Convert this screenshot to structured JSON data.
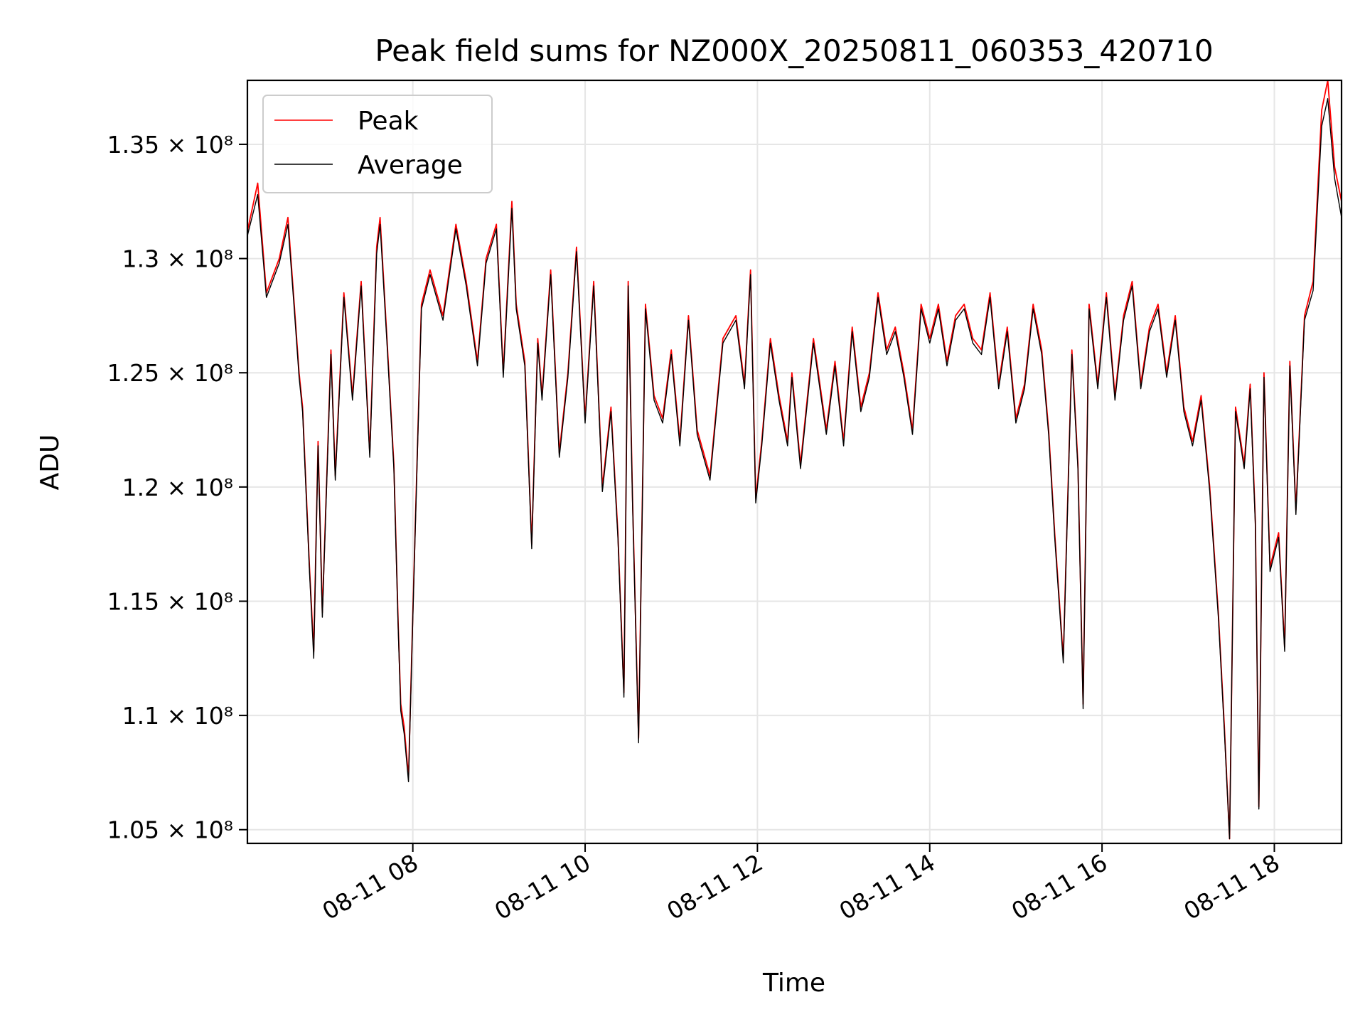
{
  "chart_data": {
    "type": "line",
    "title": "Peak field sums for NZ000X_20250811_060353_420710",
    "xlabel": "Time",
    "ylabel": "ADU",
    "x_unit": "hours",
    "xlim": [
      6.08,
      18.78
    ],
    "ylim": [
      104400000,
      137800000
    ],
    "xticks": [
      8,
      10,
      12,
      14,
      16,
      18
    ],
    "xtick_labels": [
      "08-11 08",
      "08-11 10",
      "08-11 12",
      "08-11 14",
      "08-11 16",
      "08-11 18"
    ],
    "yticks": [
      105000000,
      110000000,
      115000000,
      120000000,
      125000000,
      130000000,
      135000000
    ],
    "ytick_labels": [
      "1.05 × 10⁸",
      "1.1 × 10⁸",
      "1.15 × 10⁸",
      "1.2 × 10⁸",
      "1.25 × 10⁸",
      "1.3 × 10⁸",
      "1.35 × 10⁸"
    ],
    "grid": true,
    "legend_position": "top-left",
    "series": [
      {
        "name": "Peak",
        "color": "#ff0000",
        "x": [
          6.08,
          6.2,
          6.3,
          6.45,
          6.55,
          6.62,
          6.68,
          6.72,
          6.8,
          6.85,
          6.9,
          6.95,
          7.05,
          7.1,
          7.2,
          7.3,
          7.4,
          7.5,
          7.58,
          7.62,
          7.7,
          7.78,
          7.83,
          7.86,
          7.9,
          7.95,
          8.0,
          8.1,
          8.2,
          8.35,
          8.5,
          8.62,
          8.75,
          8.85,
          8.97,
          9.05,
          9.15,
          9.2,
          9.3,
          9.38,
          9.45,
          9.5,
          9.6,
          9.7,
          9.8,
          9.9,
          10.0,
          10.1,
          10.2,
          10.3,
          10.38,
          10.45,
          10.5,
          10.55,
          10.62,
          10.7,
          10.8,
          10.9,
          11.0,
          11.1,
          11.2,
          11.3,
          11.45,
          11.6,
          11.75,
          11.85,
          11.92,
          11.98,
          12.05,
          12.15,
          12.25,
          12.35,
          12.4,
          12.5,
          12.65,
          12.8,
          12.9,
          13.0,
          13.1,
          13.2,
          13.3,
          13.4,
          13.5,
          13.6,
          13.7,
          13.8,
          13.9,
          14.0,
          14.1,
          14.2,
          14.3,
          14.4,
          14.5,
          14.6,
          14.7,
          14.8,
          14.9,
          15.0,
          15.1,
          15.2,
          15.3,
          15.38,
          15.45,
          15.55,
          15.65,
          15.72,
          15.78,
          15.85,
          15.95,
          16.05,
          16.15,
          16.25,
          16.35,
          16.45,
          16.55,
          16.65,
          16.75,
          16.85,
          16.95,
          17.05,
          17.15,
          17.25,
          17.35,
          17.42,
          17.48,
          17.55,
          17.65,
          17.72,
          17.78,
          17.82,
          17.88,
          17.95,
          18.05,
          18.12,
          18.18,
          18.25,
          18.35,
          18.45,
          18.55,
          18.62,
          18.7,
          18.78
        ],
        "values": [
          131.2,
          133.3,
          128.5,
          130.0,
          131.8,
          128.2,
          125.0,
          123.5,
          116.5,
          112.8,
          122.0,
          114.5,
          126.0,
          120.5,
          128.5,
          124.0,
          129.0,
          121.5,
          130.5,
          131.8,
          126.5,
          121.0,
          114.0,
          110.5,
          109.5,
          107.3,
          114.5,
          128.0,
          129.5,
          127.5,
          131.5,
          129.0,
          125.5,
          130.0,
          131.5,
          125.0,
          132.5,
          128.0,
          125.5,
          117.5,
          126.5,
          124.0,
          129.5,
          121.5,
          125.0,
          130.5,
          123.0,
          129.0,
          120.0,
          123.5,
          118.0,
          111.0,
          129.0,
          119.5,
          109.0,
          128.0,
          124.0,
          123.0,
          126.0,
          122.0,
          127.5,
          122.5,
          120.5,
          126.5,
          127.5,
          124.5,
          129.5,
          119.5,
          122.0,
          126.5,
          124.0,
          122.0,
          125.0,
          121.0,
          126.5,
          122.5,
          125.5,
          122.0,
          127.0,
          123.5,
          125.0,
          128.5,
          126.0,
          127.0,
          125.0,
          122.5,
          128.0,
          126.5,
          128.0,
          125.5,
          127.5,
          128.0,
          126.5,
          126.0,
          128.5,
          124.5,
          127.0,
          123.0,
          124.5,
          128.0,
          126.0,
          122.5,
          118.0,
          112.5,
          126.0,
          121.0,
          110.5,
          128.0,
          124.5,
          128.5,
          124.0,
          127.5,
          129.0,
          124.5,
          127.0,
          128.0,
          125.0,
          127.5,
          123.5,
          122.0,
          124.0,
          120.0,
          114.5,
          109.5,
          104.6,
          123.5,
          121.0,
          124.5,
          118.5,
          106.0,
          125.0,
          116.5,
          118.0,
          113.0,
          125.5,
          119.0,
          127.5,
          129.0,
          136.5,
          137.8,
          134.0,
          132.5
        ]
      },
      {
        "name": "Average",
        "color": "#000000",
        "x": [
          6.08,
          6.2,
          6.3,
          6.45,
          6.55,
          6.62,
          6.68,
          6.72,
          6.8,
          6.85,
          6.9,
          6.95,
          7.05,
          7.1,
          7.2,
          7.3,
          7.4,
          7.5,
          7.58,
          7.62,
          7.7,
          7.78,
          7.83,
          7.86,
          7.9,
          7.95,
          8.0,
          8.1,
          8.2,
          8.35,
          8.5,
          8.62,
          8.75,
          8.85,
          8.97,
          9.05,
          9.15,
          9.2,
          9.3,
          9.38,
          9.45,
          9.5,
          9.6,
          9.7,
          9.8,
          9.9,
          10.0,
          10.1,
          10.2,
          10.3,
          10.38,
          10.45,
          10.5,
          10.55,
          10.62,
          10.7,
          10.8,
          10.9,
          11.0,
          11.1,
          11.2,
          11.3,
          11.45,
          11.6,
          11.75,
          11.85,
          11.92,
          11.98,
          12.05,
          12.15,
          12.25,
          12.35,
          12.4,
          12.5,
          12.65,
          12.8,
          12.9,
          13.0,
          13.1,
          13.2,
          13.3,
          13.4,
          13.5,
          13.6,
          13.7,
          13.8,
          13.9,
          14.0,
          14.1,
          14.2,
          14.3,
          14.4,
          14.5,
          14.6,
          14.7,
          14.8,
          14.9,
          15.0,
          15.1,
          15.2,
          15.3,
          15.38,
          15.45,
          15.55,
          15.65,
          15.72,
          15.78,
          15.85,
          15.95,
          16.05,
          16.15,
          16.25,
          16.35,
          16.45,
          16.55,
          16.65,
          16.75,
          16.85,
          16.95,
          17.05,
          17.15,
          17.25,
          17.35,
          17.42,
          17.48,
          17.55,
          17.65,
          17.72,
          17.78,
          17.82,
          17.88,
          17.95,
          18.05,
          18.12,
          18.18,
          18.25,
          18.35,
          18.45,
          18.55,
          18.62,
          18.7,
          18.78
        ],
        "values": [
          131.0,
          132.8,
          128.3,
          129.8,
          131.5,
          128.0,
          124.8,
          123.3,
          116.3,
          112.5,
          121.8,
          114.3,
          125.8,
          120.3,
          128.3,
          123.8,
          128.8,
          121.3,
          130.2,
          131.5,
          126.3,
          120.8,
          113.8,
          110.2,
          109.2,
          107.1,
          114.3,
          127.8,
          129.3,
          127.3,
          131.3,
          128.8,
          125.3,
          129.8,
          131.3,
          124.8,
          132.2,
          127.8,
          125.3,
          117.3,
          126.3,
          123.8,
          129.3,
          121.3,
          124.8,
          130.3,
          122.8,
          128.8,
          119.8,
          123.3,
          117.8,
          110.8,
          128.8,
          119.3,
          108.8,
          127.8,
          123.8,
          122.8,
          125.8,
          121.8,
          127.3,
          122.3,
          120.3,
          126.3,
          127.3,
          124.3,
          129.3,
          119.3,
          121.8,
          126.3,
          123.8,
          121.8,
          124.8,
          120.8,
          126.3,
          122.3,
          125.3,
          121.8,
          126.8,
          123.3,
          124.8,
          128.3,
          125.8,
          126.8,
          124.8,
          122.3,
          127.8,
          126.3,
          127.8,
          125.3,
          127.3,
          127.8,
          126.3,
          125.8,
          128.3,
          124.3,
          126.8,
          122.8,
          124.3,
          127.8,
          125.8,
          122.3,
          117.8,
          112.3,
          125.8,
          120.8,
          110.3,
          127.8,
          124.3,
          128.3,
          123.8,
          127.3,
          128.8,
          124.3,
          126.8,
          127.8,
          124.8,
          127.3,
          123.3,
          121.8,
          123.8,
          119.8,
          114.3,
          109.3,
          104.6,
          123.3,
          120.8,
          124.3,
          118.3,
          105.9,
          124.8,
          116.3,
          117.8,
          112.8,
          125.3,
          118.8,
          127.3,
          128.6,
          135.8,
          137.0,
          133.5,
          131.8
        ]
      }
    ]
  }
}
